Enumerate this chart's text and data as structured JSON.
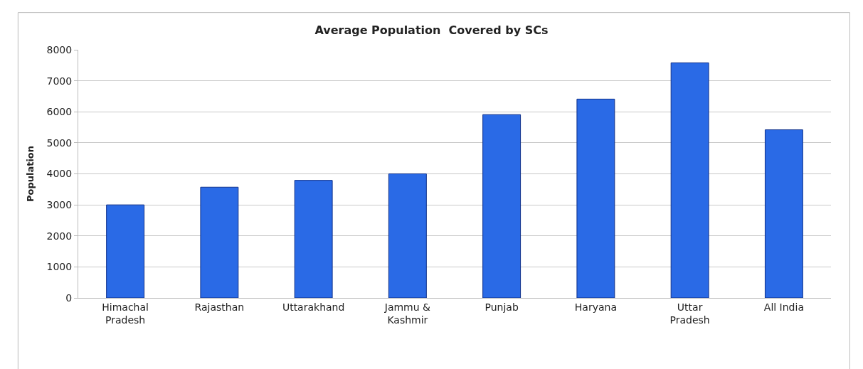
{
  "chart_data": {
    "type": "bar",
    "title": "Average Population  Covered by SCs",
    "ylabel": "Population",
    "categories": [
      "Himachal Pradesh",
      "Rajasthan",
      "Uttarakhand",
      "Jammu & Kashmir",
      "Punjab",
      "Haryana",
      "Uttar Pradesh",
      "All India"
    ],
    "values": [
      3000,
      3570,
      3790,
      4000,
      5910,
      6410,
      7580,
      5420
    ],
    "color": "#2a6ae6",
    "ylim": [
      0,
      8000
    ],
    "yticks": [
      0,
      1000,
      2000,
      3000,
      4000,
      5000,
      6000,
      7000,
      8000
    ],
    "grid": "y"
  }
}
